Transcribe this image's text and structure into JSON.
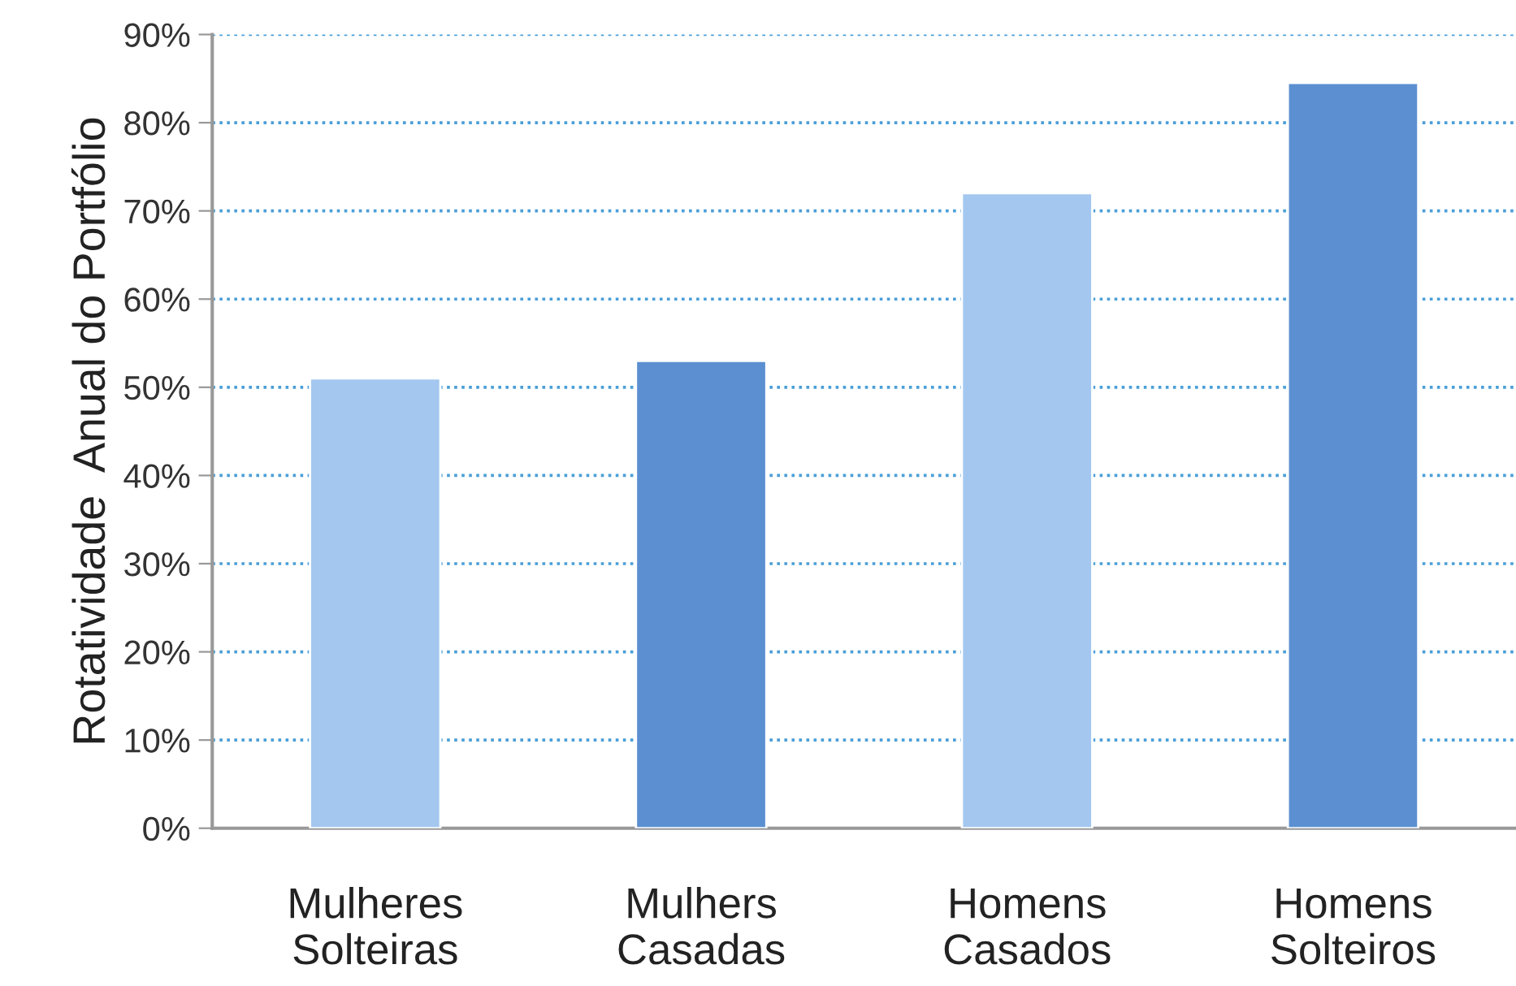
{
  "chart_data": {
    "type": "bar",
    "ylabel": "Rotatividade  Anual do Portfólio",
    "categories": [
      "Mulheres\nSolteiras",
      "Mulhers\nCasadas",
      "Homens\nCasados",
      "Homens\nSolteiros"
    ],
    "values": [
      51,
      53,
      72,
      84.5
    ],
    "colors": [
      "#a3c7ef",
      "#5b8fd1",
      "#a3c7ef",
      "#5b8fd1"
    ],
    "ylim": [
      0,
      90
    ],
    "yticks": [
      {
        "value": 0,
        "label": "0%"
      },
      {
        "value": 10,
        "label": "10%"
      },
      {
        "value": 20,
        "label": "20%"
      },
      {
        "value": 30,
        "label": "30%"
      },
      {
        "value": 40,
        "label": "40%"
      },
      {
        "value": 50,
        "label": "50%"
      },
      {
        "value": 60,
        "label": "60%"
      },
      {
        "value": 70,
        "label": "70%"
      },
      {
        "value": 80,
        "label": "80%"
      },
      {
        "value": 90,
        "label": "90%"
      }
    ],
    "grid": "y"
  }
}
